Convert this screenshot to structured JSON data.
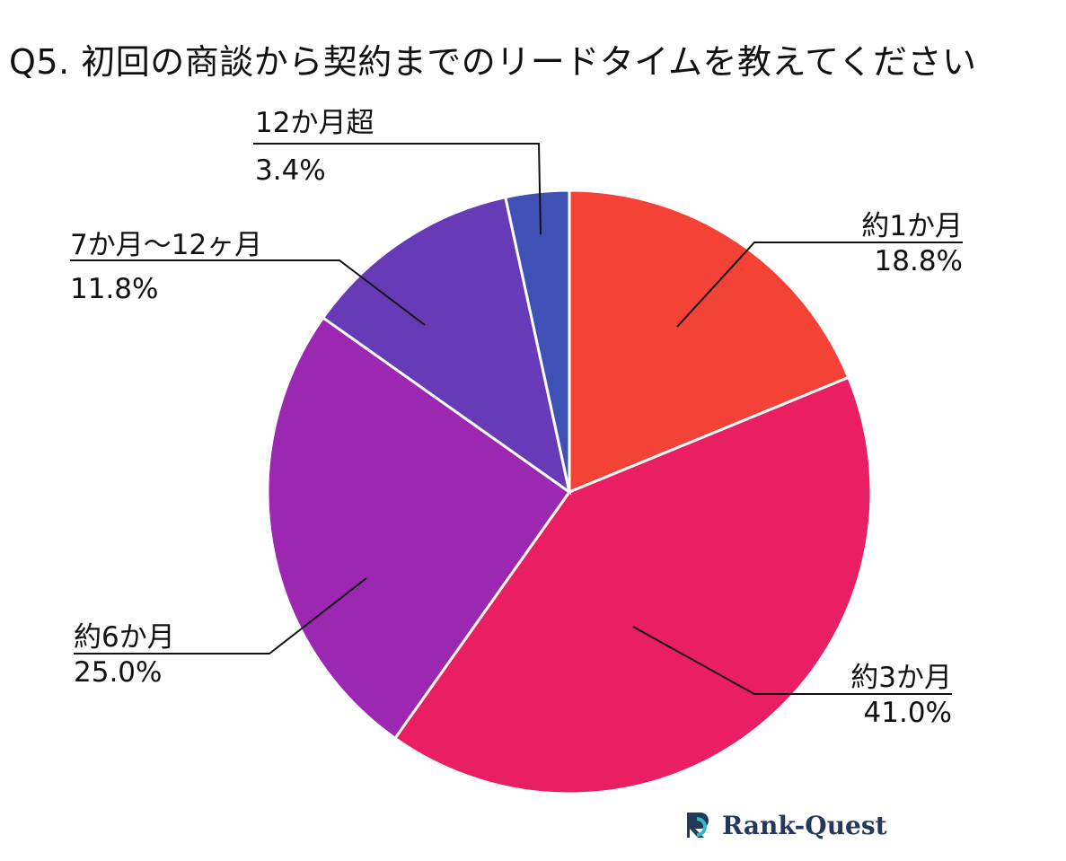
{
  "chart_data": {
    "type": "pie",
    "title": "Q5. 初回の商談から契約までのリードタイムを教えてください",
    "slices": [
      {
        "label": "約1か月",
        "value": 18.8,
        "value_text": "18.8%",
        "color": "#f44336"
      },
      {
        "label": "約3か月",
        "value": 41.0,
        "value_text": "41.0%",
        "color": "#e91e63"
      },
      {
        "label": "約6か月",
        "value": 25.0,
        "value_text": "25.0%",
        "color": "#9c27b0"
      },
      {
        "label": "7か月〜12ヶ月",
        "value": 11.8,
        "value_text": "11.8%",
        "color": "#673ab7"
      },
      {
        "label": "12か月超",
        "value": 3.4,
        "value_text": "3.4%",
        "color": "#3f51b5"
      }
    ],
    "start_angle_deg": 0,
    "direction": "clockwise"
  },
  "brand": {
    "name": "Rank-Quest",
    "logo_icon": "rank-quest-logo-icon",
    "colors": {
      "teal": "#35b8bf",
      "navy": "#24395a"
    }
  }
}
